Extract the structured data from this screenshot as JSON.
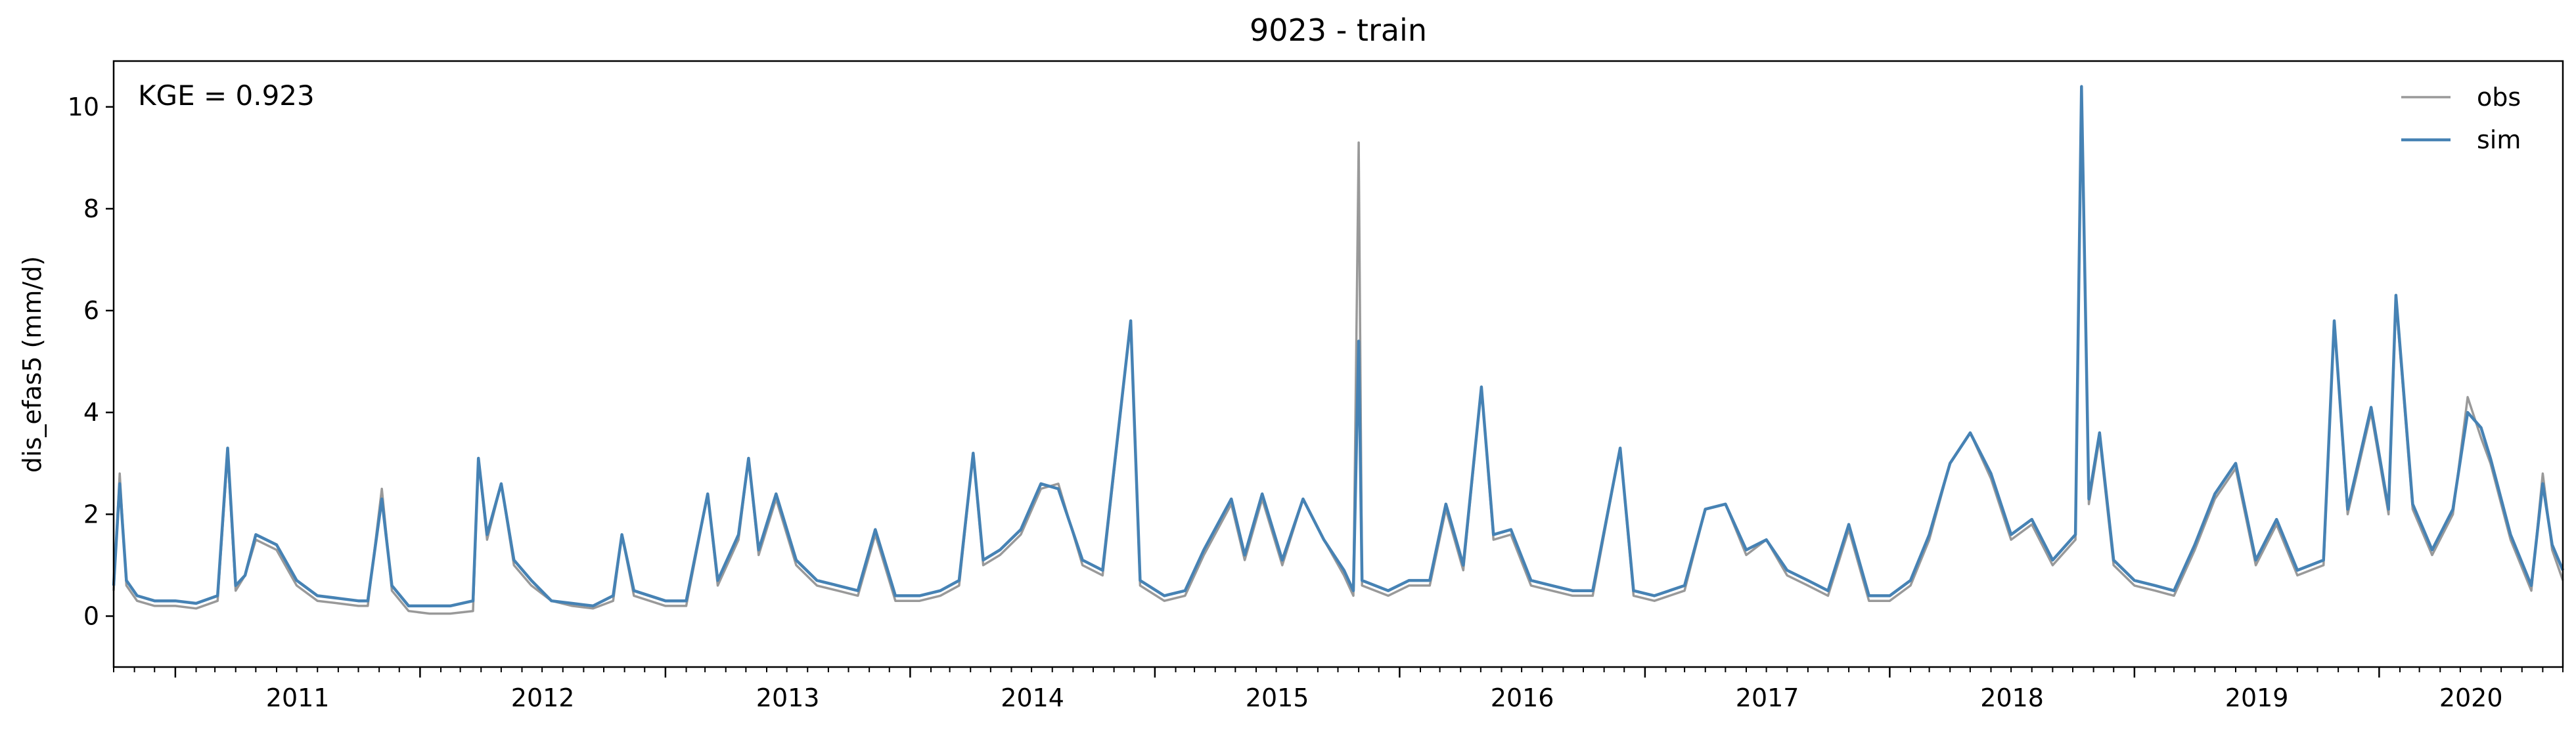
{
  "chart_data": {
    "type": "line",
    "title": "9023 - train",
    "ylabel": "dis_efas5 (mm/d)",
    "xlabel": "",
    "annotation": "KGE = 0.923",
    "xlim": [
      "2010-10-01",
      "2020-10-01"
    ],
    "ylim": [
      -1,
      10.9
    ],
    "yticks": [
      0,
      2,
      4,
      6,
      8,
      10
    ],
    "xticks": [
      "2011",
      "2012",
      "2013",
      "2014",
      "2015",
      "2016",
      "2017",
      "2018",
      "2019",
      "2020"
    ],
    "legend": "top-right",
    "grid": false,
    "series": [
      {
        "name": "obs",
        "color": "#999999",
        "points": [
          [
            "2010-10-01",
            0.5
          ],
          [
            "2010-10-10",
            2.8
          ],
          [
            "2010-10-20",
            0.6
          ],
          [
            "2010-11-05",
            0.3
          ],
          [
            "2010-12-01",
            0.2
          ],
          [
            "2011-01-01",
            0.2
          ],
          [
            "2011-02-01",
            0.15
          ],
          [
            "2011-03-05",
            0.3
          ],
          [
            "2011-03-20",
            3.2
          ],
          [
            "2011-04-01",
            0.5
          ],
          [
            "2011-04-15",
            0.8
          ],
          [
            "2011-05-01",
            1.5
          ],
          [
            "2011-06-01",
            1.3
          ],
          [
            "2011-07-01",
            0.6
          ],
          [
            "2011-08-01",
            0.3
          ],
          [
            "2011-09-01",
            0.25
          ],
          [
            "2011-10-01",
            0.2
          ],
          [
            "2011-10-15",
            0.2
          ],
          [
            "2011-11-05",
            2.5
          ],
          [
            "2011-11-20",
            0.5
          ],
          [
            "2011-12-15",
            0.1
          ],
          [
            "2012-01-15",
            0.05
          ],
          [
            "2012-02-15",
            0.05
          ],
          [
            "2012-03-20",
            0.1
          ],
          [
            "2012-03-28",
            3.1
          ],
          [
            "2012-04-10",
            1.5
          ],
          [
            "2012-05-01",
            2.6
          ],
          [
            "2012-05-20",
            1.0
          ],
          [
            "2012-06-15",
            0.6
          ],
          [
            "2012-07-15",
            0.3
          ],
          [
            "2012-08-15",
            0.2
          ],
          [
            "2012-09-15",
            0.15
          ],
          [
            "2012-10-15",
            0.3
          ],
          [
            "2012-10-28",
            1.6
          ],
          [
            "2012-11-15",
            0.4
          ],
          [
            "2013-01-01",
            0.2
          ],
          [
            "2013-02-01",
            0.2
          ],
          [
            "2013-03-05",
            2.4
          ],
          [
            "2013-03-20",
            0.6
          ],
          [
            "2013-04-20",
            1.5
          ],
          [
            "2013-05-05",
            3.1
          ],
          [
            "2013-05-20",
            1.2
          ],
          [
            "2013-06-15",
            2.3
          ],
          [
            "2013-07-15",
            1.0
          ],
          [
            "2013-08-15",
            0.6
          ],
          [
            "2013-09-15",
            0.5
          ],
          [
            "2013-10-15",
            0.4
          ],
          [
            "2013-11-10",
            1.6
          ],
          [
            "2013-12-10",
            0.3
          ],
          [
            "2014-01-15",
            0.3
          ],
          [
            "2014-02-15",
            0.4
          ],
          [
            "2014-03-15",
            0.6
          ],
          [
            "2014-04-05",
            3.2
          ],
          [
            "2014-04-20",
            1.0
          ],
          [
            "2014-05-15",
            1.2
          ],
          [
            "2014-06-15",
            1.6
          ],
          [
            "2014-07-15",
            2.5
          ],
          [
            "2014-08-10",
            2.6
          ],
          [
            "2014-09-15",
            1.0
          ],
          [
            "2014-10-15",
            0.8
          ],
          [
            "2014-11-26",
            5.8
          ],
          [
            "2014-12-10",
            0.6
          ],
          [
            "2015-01-15",
            0.3
          ],
          [
            "2015-02-15",
            0.4
          ],
          [
            "2015-03-15",
            1.2
          ],
          [
            "2015-04-25",
            2.2
          ],
          [
            "2015-05-15",
            1.1
          ],
          [
            "2015-06-10",
            2.3
          ],
          [
            "2015-07-10",
            1.0
          ],
          [
            "2015-08-10",
            2.3
          ],
          [
            "2015-09-10",
            1.5
          ],
          [
            "2015-10-10",
            0.8
          ],
          [
            "2015-10-24",
            0.4
          ],
          [
            "2015-11-01",
            9.3
          ],
          [
            "2015-11-06",
            0.6
          ],
          [
            "2015-12-15",
            0.4
          ],
          [
            "2016-01-15",
            0.6
          ],
          [
            "2016-02-15",
            0.6
          ],
          [
            "2016-03-10",
            2.1
          ],
          [
            "2016-04-05",
            0.9
          ],
          [
            "2016-05-02",
            4.5
          ],
          [
            "2016-05-20",
            1.5
          ],
          [
            "2016-06-15",
            1.6
          ],
          [
            "2016-07-15",
            0.6
          ],
          [
            "2016-08-15",
            0.5
          ],
          [
            "2016-09-15",
            0.4
          ],
          [
            "2016-10-15",
            0.4
          ],
          [
            "2016-11-25",
            3.3
          ],
          [
            "2016-12-15",
            0.4
          ],
          [
            "2017-01-15",
            0.3
          ],
          [
            "2017-03-01",
            0.5
          ],
          [
            "2017-04-01",
            2.1
          ],
          [
            "2017-05-01",
            2.2
          ],
          [
            "2017-06-01",
            1.2
          ],
          [
            "2017-07-01",
            1.5
          ],
          [
            "2017-08-01",
            0.8
          ],
          [
            "2017-09-01",
            0.6
          ],
          [
            "2017-10-01",
            0.4
          ],
          [
            "2017-11-01",
            1.7
          ],
          [
            "2017-12-01",
            0.3
          ],
          [
            "2018-01-01",
            0.3
          ],
          [
            "2018-02-01",
            0.6
          ],
          [
            "2018-03-01",
            1.5
          ],
          [
            "2018-04-01",
            3.0
          ],
          [
            "2018-05-01",
            3.6
          ],
          [
            "2018-06-01",
            2.7
          ],
          [
            "2018-07-01",
            1.5
          ],
          [
            "2018-08-01",
            1.8
          ],
          [
            "2018-09-01",
            1.0
          ],
          [
            "2018-10-05",
            1.5
          ],
          [
            "2018-10-14",
            10.3
          ],
          [
            "2018-10-25",
            2.2
          ],
          [
            "2018-11-10",
            3.5
          ],
          [
            "2018-12-01",
            1.0
          ],
          [
            "2019-01-01",
            0.6
          ],
          [
            "2019-02-01",
            0.5
          ],
          [
            "2019-03-01",
            0.4
          ],
          [
            "2019-04-01",
            1.3
          ],
          [
            "2019-05-01",
            2.3
          ],
          [
            "2019-06-01",
            2.9
          ],
          [
            "2019-07-01",
            1.0
          ],
          [
            "2019-08-01",
            1.8
          ],
          [
            "2019-09-01",
            0.8
          ],
          [
            "2019-10-10",
            1.0
          ],
          [
            "2019-10-26",
            5.8
          ],
          [
            "2019-11-15",
            2.0
          ],
          [
            "2019-12-20",
            4.0
          ],
          [
            "2020-01-15",
            2.0
          ],
          [
            "2020-01-26",
            6.2
          ],
          [
            "2020-02-20",
            2.1
          ],
          [
            "2020-03-20",
            1.2
          ],
          [
            "2020-04-20",
            2.0
          ],
          [
            "2020-05-12",
            4.3
          ],
          [
            "2020-06-01",
            3.5
          ],
          [
            "2020-06-15",
            3.0
          ],
          [
            "2020-07-15",
            1.5
          ],
          [
            "2020-08-15",
            0.5
          ],
          [
            "2020-09-01",
            2.8
          ],
          [
            "2020-09-15",
            1.3
          ],
          [
            "2020-10-01",
            0.7
          ]
        ]
      },
      {
        "name": "sim",
        "color": "#4682b4",
        "points": [
          [
            "2010-10-01",
            0.6
          ],
          [
            "2010-10-10",
            2.6
          ],
          [
            "2010-10-20",
            0.7
          ],
          [
            "2010-11-05",
            0.4
          ],
          [
            "2010-12-01",
            0.3
          ],
          [
            "2011-01-01",
            0.3
          ],
          [
            "2011-02-01",
            0.25
          ],
          [
            "2011-03-05",
            0.4
          ],
          [
            "2011-03-20",
            3.3
          ],
          [
            "2011-04-01",
            0.6
          ],
          [
            "2011-04-15",
            0.8
          ],
          [
            "2011-05-01",
            1.6
          ],
          [
            "2011-06-01",
            1.4
          ],
          [
            "2011-07-01",
            0.7
          ],
          [
            "2011-08-01",
            0.4
          ],
          [
            "2011-09-01",
            0.35
          ],
          [
            "2011-10-01",
            0.3
          ],
          [
            "2011-10-15",
            0.3
          ],
          [
            "2011-11-05",
            2.3
          ],
          [
            "2011-11-20",
            0.6
          ],
          [
            "2011-12-15",
            0.2
          ],
          [
            "2012-01-15",
            0.2
          ],
          [
            "2012-02-15",
            0.2
          ],
          [
            "2012-03-20",
            0.3
          ],
          [
            "2012-03-28",
            3.1
          ],
          [
            "2012-04-10",
            1.6
          ],
          [
            "2012-05-01",
            2.6
          ],
          [
            "2012-05-20",
            1.1
          ],
          [
            "2012-06-15",
            0.7
          ],
          [
            "2012-07-15",
            0.3
          ],
          [
            "2012-08-15",
            0.25
          ],
          [
            "2012-09-15",
            0.2
          ],
          [
            "2012-10-15",
            0.4
          ],
          [
            "2012-10-28",
            1.6
          ],
          [
            "2012-11-15",
            0.5
          ],
          [
            "2013-01-01",
            0.3
          ],
          [
            "2013-02-01",
            0.3
          ],
          [
            "2013-03-05",
            2.4
          ],
          [
            "2013-03-20",
            0.7
          ],
          [
            "2013-04-20",
            1.6
          ],
          [
            "2013-05-05",
            3.1
          ],
          [
            "2013-05-20",
            1.3
          ],
          [
            "2013-06-15",
            2.4
          ],
          [
            "2013-07-15",
            1.1
          ],
          [
            "2013-08-15",
            0.7
          ],
          [
            "2013-09-15",
            0.6
          ],
          [
            "2013-10-15",
            0.5
          ],
          [
            "2013-11-10",
            1.7
          ],
          [
            "2013-12-10",
            0.4
          ],
          [
            "2014-01-15",
            0.4
          ],
          [
            "2014-02-15",
            0.5
          ],
          [
            "2014-03-15",
            0.7
          ],
          [
            "2014-04-05",
            3.2
          ],
          [
            "2014-04-20",
            1.1
          ],
          [
            "2014-05-15",
            1.3
          ],
          [
            "2014-06-15",
            1.7
          ],
          [
            "2014-07-15",
            2.6
          ],
          [
            "2014-08-10",
            2.5
          ],
          [
            "2014-09-15",
            1.1
          ],
          [
            "2014-10-15",
            0.9
          ],
          [
            "2014-11-26",
            5.8
          ],
          [
            "2014-12-10",
            0.7
          ],
          [
            "2015-01-15",
            0.4
          ],
          [
            "2015-02-15",
            0.5
          ],
          [
            "2015-03-15",
            1.3
          ],
          [
            "2015-04-25",
            2.3
          ],
          [
            "2015-05-15",
            1.2
          ],
          [
            "2015-06-10",
            2.4
          ],
          [
            "2015-07-10",
            1.1
          ],
          [
            "2015-08-10",
            2.3
          ],
          [
            "2015-09-10",
            1.5
          ],
          [
            "2015-10-10",
            0.9
          ],
          [
            "2015-10-24",
            0.5
          ],
          [
            "2015-11-01",
            5.4
          ],
          [
            "2015-11-06",
            0.7
          ],
          [
            "2015-12-15",
            0.5
          ],
          [
            "2016-01-15",
            0.7
          ],
          [
            "2016-02-15",
            0.7
          ],
          [
            "2016-03-10",
            2.2
          ],
          [
            "2016-04-05",
            1.0
          ],
          [
            "2016-05-02",
            4.5
          ],
          [
            "2016-05-20",
            1.6
          ],
          [
            "2016-06-15",
            1.7
          ],
          [
            "2016-07-15",
            0.7
          ],
          [
            "2016-08-15",
            0.6
          ],
          [
            "2016-09-15",
            0.5
          ],
          [
            "2016-10-15",
            0.5
          ],
          [
            "2016-11-25",
            3.3
          ],
          [
            "2016-12-15",
            0.5
          ],
          [
            "2017-01-15",
            0.4
          ],
          [
            "2017-03-01",
            0.6
          ],
          [
            "2017-04-01",
            2.1
          ],
          [
            "2017-05-01",
            2.2
          ],
          [
            "2017-06-01",
            1.3
          ],
          [
            "2017-07-01",
            1.5
          ],
          [
            "2017-08-01",
            0.9
          ],
          [
            "2017-09-01",
            0.7
          ],
          [
            "2017-10-01",
            0.5
          ],
          [
            "2017-11-01",
            1.8
          ],
          [
            "2017-12-01",
            0.4
          ],
          [
            "2018-01-01",
            0.4
          ],
          [
            "2018-02-01",
            0.7
          ],
          [
            "2018-03-01",
            1.6
          ],
          [
            "2018-04-01",
            3.0
          ],
          [
            "2018-05-01",
            3.6
          ],
          [
            "2018-06-01",
            2.8
          ],
          [
            "2018-07-01",
            1.6
          ],
          [
            "2018-08-01",
            1.9
          ],
          [
            "2018-09-01",
            1.1
          ],
          [
            "2018-10-05",
            1.6
          ],
          [
            "2018-10-14",
            10.4
          ],
          [
            "2018-10-25",
            2.3
          ],
          [
            "2018-11-10",
            3.6
          ],
          [
            "2018-12-01",
            1.1
          ],
          [
            "2019-01-01",
            0.7
          ],
          [
            "2019-02-01",
            0.6
          ],
          [
            "2019-03-01",
            0.5
          ],
          [
            "2019-04-01",
            1.4
          ],
          [
            "2019-05-01",
            2.4
          ],
          [
            "2019-06-01",
            3.0
          ],
          [
            "2019-07-01",
            1.1
          ],
          [
            "2019-08-01",
            1.9
          ],
          [
            "2019-09-01",
            0.9
          ],
          [
            "2019-10-10",
            1.1
          ],
          [
            "2019-10-26",
            5.8
          ],
          [
            "2019-11-15",
            2.1
          ],
          [
            "2019-12-20",
            4.1
          ],
          [
            "2020-01-15",
            2.1
          ],
          [
            "2020-01-26",
            6.3
          ],
          [
            "2020-02-20",
            2.2
          ],
          [
            "2020-03-20",
            1.3
          ],
          [
            "2020-04-20",
            2.1
          ],
          [
            "2020-05-12",
            4.0
          ],
          [
            "2020-06-01",
            3.7
          ],
          [
            "2020-06-15",
            3.1
          ],
          [
            "2020-07-15",
            1.6
          ],
          [
            "2020-08-15",
            0.6
          ],
          [
            "2020-09-01",
            2.6
          ],
          [
            "2020-09-15",
            1.4
          ],
          [
            "2020-10-01",
            0.9
          ]
        ]
      }
    ]
  }
}
